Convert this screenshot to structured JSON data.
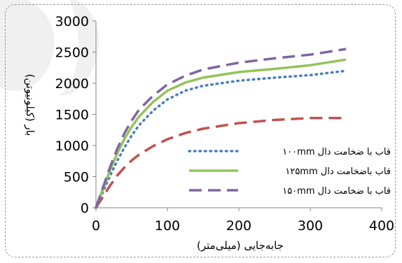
{
  "chart_data": {
    "type": "line",
    "title": "",
    "xlabel": "جابه‌جایی (میلی‌متر)",
    "ylabel": "بار (کیلونیوتن)",
    "xlim": [
      0,
      400
    ],
    "ylim": [
      0,
      3000
    ],
    "x_ticks": [
      "0",
      "100",
      "200",
      "300",
      "400"
    ],
    "y_ticks": [
      "0",
      "500",
      "1000",
      "1500",
      "2000",
      "2500",
      "3000"
    ],
    "grid": false,
    "legend_position": "bottom-right",
    "series": [
      {
        "name": "قاب با ضخامت دال ۱۰۰mm",
        "color": "#4a7ebb",
        "style": "dotted",
        "x": [
          0,
          10,
          20,
          30,
          40,
          50,
          60,
          80,
          100,
          125,
          150,
          200,
          250,
          300,
          350
        ],
        "y": [
          0,
          260,
          520,
          760,
          970,
          1160,
          1320,
          1560,
          1740,
          1880,
          1960,
          2040,
          2090,
          2130,
          2200
        ]
      },
      {
        "name": "قاب باضخامت دال ۱۲۵mm",
        "color": "#92c35a",
        "style": "solid",
        "x": [
          0,
          10,
          20,
          30,
          40,
          50,
          60,
          80,
          100,
          125,
          150,
          200,
          250,
          300,
          350
        ],
        "y": [
          0,
          310,
          610,
          880,
          1110,
          1300,
          1460,
          1700,
          1880,
          2010,
          2090,
          2180,
          2230,
          2290,
          2380
        ]
      },
      {
        "name": "قاب با ضخامت دال ۱۵۰mm",
        "color": "#8064a2",
        "style": "dashed",
        "x": [
          0,
          10,
          20,
          30,
          40,
          50,
          60,
          80,
          100,
          125,
          150,
          200,
          250,
          300,
          350
        ],
        "y": [
          0,
          330,
          660,
          950,
          1200,
          1400,
          1570,
          1800,
          1980,
          2120,
          2220,
          2330,
          2400,
          2460,
          2550
        ]
      },
      {
        "name": "",
        "color": "#c0504d",
        "style": "dashed",
        "x": [
          0,
          10,
          20,
          30,
          40,
          50,
          60,
          80,
          100,
          125,
          150,
          200,
          250,
          300,
          350
        ],
        "y": [
          0,
          180,
          360,
          520,
          650,
          760,
          850,
          990,
          1100,
          1200,
          1270,
          1360,
          1410,
          1440,
          1440
        ]
      }
    ]
  }
}
